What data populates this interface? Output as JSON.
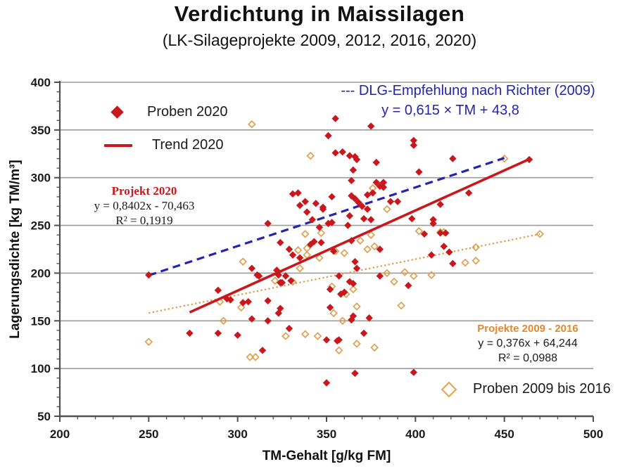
{
  "page": {
    "title": "Verdichtung in Maissilagen",
    "subtitle": "(LK-Silageprojekte  2009, 2012, 2016, 2020)"
  },
  "legend": {
    "proben_2020": "Proben 2020",
    "trend_2020": "Trend 2020",
    "proben_2009_2016": "Proben 2009 bis 2016"
  },
  "dlg": {
    "line1": "--- DLG-Empfehlung nach Richter (2009)",
    "line2": "y = 0,615 × TM + 43,8"
  },
  "projekt_2020": {
    "title": "Projekt 2020",
    "equation": "y = 0,8402x - 70,463",
    "r2": "R² = 0,1919"
  },
  "projekte_2009_2016": {
    "title": "Projekte 2009 - 2016",
    "equation": "y = 0,376x + 64,244",
    "r2": "R² = 0,0988"
  },
  "colors": {
    "red": "#c9181d",
    "orange_marker": "#e0a052",
    "orange_line": "#dd9a3e",
    "orange_text": "#e2882d",
    "blue": "#2424ad",
    "grid": "#9b9b9b",
    "axis": "#4f4f4f"
  },
  "chart_data": {
    "type": "scatter",
    "title": "Verdichtung in Maissilagen",
    "subtitle": "(LK-Silageprojekte 2009, 2012, 2016, 2020)",
    "xlabel": "TM-Gehalt [g/kg FM]",
    "ylabel": "Lagerungsdichte [kg TM/m³]",
    "xlim": [
      200,
      500
    ],
    "ylim": [
      50,
      400
    ],
    "xticks": [
      200,
      250,
      300,
      350,
      400,
      450,
      500
    ],
    "yticks": [
      50,
      100,
      150,
      200,
      250,
      300,
      350,
      400
    ],
    "minor_tick_step": 10,
    "grid": "horizontal",
    "legend_position": "inside",
    "series": [
      {
        "name": "Proben 2009 bis 2016",
        "type": "scatter",
        "marker": "open-diamond",
        "color": "#e0a052",
        "points": [
          [
            308,
            356
          ],
          [
            341,
            323
          ],
          [
            376,
            289
          ],
          [
            384,
            267
          ],
          [
            450,
            320
          ],
          [
            470,
            241
          ],
          [
            434,
            227
          ],
          [
            428,
            211
          ],
          [
            434,
            213
          ],
          [
            338,
            241
          ],
          [
            347,
            242
          ],
          [
            334,
            224
          ],
          [
            339,
            226
          ],
          [
            339,
            219
          ],
          [
            355,
            223
          ],
          [
            346,
            216
          ],
          [
            303,
            212
          ],
          [
            335,
            205
          ],
          [
            321,
            192
          ],
          [
            331,
            191
          ],
          [
            369,
            234
          ],
          [
            375,
            240
          ],
          [
            360,
            221
          ],
          [
            377,
            228
          ],
          [
            373,
            225
          ],
          [
            384,
            200
          ],
          [
            394,
            201
          ],
          [
            399,
            197
          ],
          [
            409,
            198
          ],
          [
            353,
            186
          ],
          [
            388,
            191
          ],
          [
            365,
            183
          ],
          [
            361,
            178
          ],
          [
            354,
            158
          ],
          [
            367,
            165
          ],
          [
            392,
            166
          ],
          [
            359,
            150
          ],
          [
            402,
            244
          ],
          [
            414,
            243
          ],
          [
            416,
            243
          ],
          [
            290,
            170
          ],
          [
            302,
            164
          ],
          [
            292,
            150
          ],
          [
            327,
            134
          ],
          [
            338,
            136
          ],
          [
            345,
            134
          ],
          [
            367,
            126
          ],
          [
            357,
            119
          ],
          [
            377,
            122
          ],
          [
            307,
            112
          ],
          [
            310,
            112
          ],
          [
            250,
            128
          ]
        ]
      },
      {
        "name": "Projekte 2009 - 2016",
        "type": "line",
        "style": "dotted",
        "color": "#dd9a3e",
        "x": [
          250,
          470
        ],
        "y": [
          158.2,
          240.9
        ],
        "equation": "y = 0,376x + 64,244",
        "r2": 0.0988
      },
      {
        "name": "DLG-Empfehlung nach Richter (2009)",
        "type": "line",
        "style": "dashed",
        "color": "#2424ad",
        "x": [
          250,
          450
        ],
        "y": [
          197.6,
          320.6
        ],
        "equation": "y = 0,615 × TM + 43,8"
      },
      {
        "name": "Trend 2020",
        "type": "line",
        "style": "solid",
        "color": "#c9181d",
        "x": [
          273,
          464
        ],
        "y": [
          158.9,
          319.4
        ],
        "equation": "y = 0,8402x - 70,463",
        "r2": 0.1919
      },
      {
        "name": "Proben 2020",
        "type": "scatter",
        "marker": "filled-diamond",
        "color": "#c9181d",
        "points": [
          [
            355,
            362
          ],
          [
            375,
            354
          ],
          [
            351,
            344
          ],
          [
            399,
            339
          ],
          [
            399,
            334
          ],
          [
            355,
            326
          ],
          [
            359,
            327
          ],
          [
            363,
            323
          ],
          [
            366,
            322
          ],
          [
            367,
            319
          ],
          [
            378,
            316
          ],
          [
            421,
            320
          ],
          [
            464,
            319
          ],
          [
            365,
            308
          ],
          [
            402,
            306
          ],
          [
            364,
            297
          ],
          [
            378,
            295
          ],
          [
            382,
            295
          ],
          [
            380,
            291
          ],
          [
            382,
            290
          ],
          [
            373,
            282
          ],
          [
            376,
            284
          ],
          [
            353,
            280
          ],
          [
            364,
            281
          ],
          [
            366,
            278
          ],
          [
            368,
            274
          ],
          [
            348,
            269
          ],
          [
            370,
            270
          ],
          [
            386,
            275
          ],
          [
            390,
            275
          ],
          [
            373,
            267
          ],
          [
            363,
            260
          ],
          [
            371,
            257
          ],
          [
            375,
            256
          ],
          [
            410,
            256
          ],
          [
            398,
            257
          ],
          [
            351,
            252
          ],
          [
            362,
            250
          ],
          [
            346,
            248
          ],
          [
            317,
            252
          ],
          [
            331,
            283
          ],
          [
            334,
            284
          ],
          [
            335,
            271
          ],
          [
            338,
            275
          ],
          [
            344,
            273
          ],
          [
            339,
            264
          ],
          [
            348,
            267
          ],
          [
            342,
            256
          ],
          [
            353,
            253
          ],
          [
            324,
            232
          ],
          [
            329,
            225
          ],
          [
            341,
            230
          ],
          [
            343,
            233
          ],
          [
            347,
            232
          ],
          [
            331,
            219
          ],
          [
            335,
            216
          ],
          [
            364,
            234
          ],
          [
            354,
            223
          ],
          [
            380,
            225
          ],
          [
            405,
            241
          ],
          [
            414,
            242
          ],
          [
            417,
            242
          ],
          [
            416,
            228
          ],
          [
            409,
            219
          ],
          [
            421,
            210
          ],
          [
            419,
            222
          ],
          [
            414,
            272
          ],
          [
            430,
            284
          ],
          [
            410,
            252
          ],
          [
            366,
            212
          ],
          [
            367,
            205
          ],
          [
            357,
            197
          ],
          [
            380,
            197
          ],
          [
            363,
            191
          ],
          [
            365,
            189
          ],
          [
            352,
            183
          ],
          [
            396,
            187
          ],
          [
            360,
            180
          ],
          [
            358,
            178
          ],
          [
            308,
            205
          ],
          [
            311,
            198
          ],
          [
            322,
            203
          ],
          [
            323,
            198
          ],
          [
            327,
            197
          ],
          [
            330,
            192
          ],
          [
            324,
            190
          ],
          [
            325,
            190
          ],
          [
            312,
            197
          ],
          [
            289,
            182
          ],
          [
            294,
            173
          ],
          [
            296,
            172
          ],
          [
            303,
            169
          ],
          [
            306,
            170
          ],
          [
            317,
            171
          ],
          [
            324,
            163
          ],
          [
            323,
            158
          ],
          [
            308,
            152
          ],
          [
            317,
            150
          ],
          [
            289,
            137
          ],
          [
            300,
            135
          ],
          [
            329,
            142
          ],
          [
            273,
            137
          ],
          [
            352,
            164
          ],
          [
            365,
            155
          ],
          [
            364,
            151
          ],
          [
            374,
            153
          ],
          [
            371,
            137
          ],
          [
            357,
            130
          ],
          [
            350,
            130
          ],
          [
            356,
            129
          ],
          [
            314,
            119
          ],
          [
            366,
            95
          ],
          [
            399,
            96
          ],
          [
            350,
            85
          ],
          [
            250,
            198
          ]
        ]
      }
    ]
  }
}
